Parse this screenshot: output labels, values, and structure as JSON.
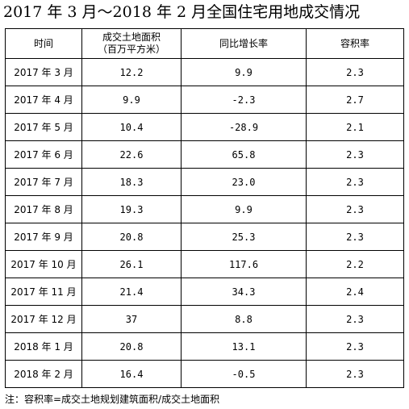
{
  "title": "2017 年 3 月～2018 年 2 月全国住宅用地成交情况",
  "table": {
    "headers": {
      "time": "时间",
      "area_line1": "成交土地面积",
      "area_line2": "（百万平方米）",
      "yoy": "同比增长率",
      "far": "容积率"
    },
    "rows": [
      {
        "time": "2017 年 3 月",
        "area": "12.2",
        "yoy": "9.9",
        "far": "2.3"
      },
      {
        "time": "2017 年 4 月",
        "area": "9.9",
        "yoy": "-2.3",
        "far": "2.7"
      },
      {
        "time": "2017 年 5 月",
        "area": "10.4",
        "yoy": "-28.9",
        "far": "2.1"
      },
      {
        "time": "2017 年 6 月",
        "area": "22.6",
        "yoy": "65.8",
        "far": "2.3"
      },
      {
        "time": "2017 年 7 月",
        "area": "18.3",
        "yoy": "23.0",
        "far": "2.3"
      },
      {
        "time": "2017 年 8 月",
        "area": "19.3",
        "yoy": "9.9",
        "far": "2.3"
      },
      {
        "time": "2017 年 9 月",
        "area": "20.8",
        "yoy": "25.3",
        "far": "2.3"
      },
      {
        "time": "2017 年 10 月",
        "area": "26.1",
        "yoy": "117.6",
        "far": "2.2"
      },
      {
        "time": "2017 年 11 月",
        "area": "21.4",
        "yoy": "34.3",
        "far": "2.4"
      },
      {
        "time": "2017 年 12 月",
        "area": "37",
        "yoy": "8.8",
        "far": "2.3"
      },
      {
        "time": "2018 年 1 月",
        "area": "20.8",
        "yoy": "13.1",
        "far": "2.3"
      },
      {
        "time": "2018 年 2 月",
        "area": "16.4",
        "yoy": "-0.5",
        "far": "2.3"
      }
    ]
  },
  "note": "注：容积率=成交土地规划建筑面积/成交土地面积"
}
